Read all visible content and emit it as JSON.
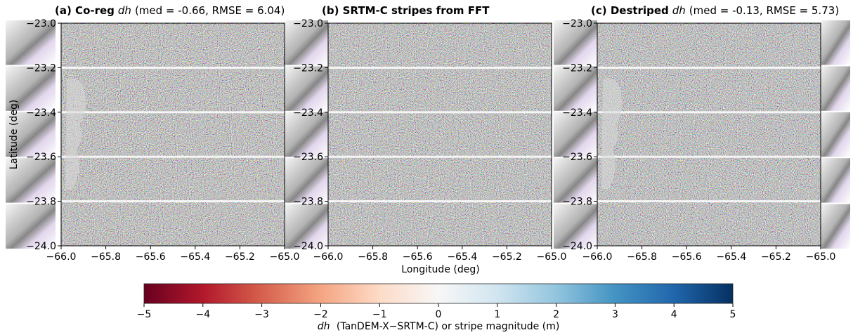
{
  "chart_data": {
    "type": "heatmap",
    "panels": [
      {
        "id": "a",
        "title_tag": "(a)",
        "title_bold": "Co-reg",
        "title_var": "dh",
        "title_stats": "(med = -0.66, RMSE = 6.04)",
        "median": -0.66,
        "rmse": 6.04
      },
      {
        "id": "b",
        "title_tag": "(b)",
        "title_bold": "SRTM-C stripes from FFT",
        "title_var": "",
        "title_stats": ""
      },
      {
        "id": "c",
        "title_tag": "(c)",
        "title_bold": "Destriped",
        "title_var": "dh",
        "title_stats": "(med = -0.13, RMSE = 5.73)",
        "median": -0.13,
        "rmse": 5.73
      }
    ],
    "xlim": [
      -66.0,
      -65.0
    ],
    "ylim": [
      -24.0,
      -23.0
    ],
    "x_ticks": [
      "−66.0",
      "−65.8",
      "−65.6",
      "−65.4",
      "−65.2",
      "−65.0"
    ],
    "y_ticks": [
      "−23.0",
      "−23.2",
      "−23.4",
      "−23.6",
      "−23.8",
      "−24.0"
    ],
    "xlabel": "Longitude (deg)",
    "ylabel": "Latitude (deg)",
    "stripe_latitudes": [
      -23.2,
      -23.4,
      -23.6,
      -23.8
    ],
    "colorbar": {
      "cmap": "RdBu",
      "vmin": -5,
      "vmax": 5,
      "ticks": [
        "−5",
        "−4",
        "−3",
        "−2",
        "−1",
        "0",
        "1",
        "2",
        "3",
        "4",
        "5"
      ],
      "label_var": "dh",
      "label_rest": "(TanDEM-X−SRTM-C) or stripe magnitude (m)",
      "colors": [
        "#67001f",
        "#b2182b",
        "#d6604d",
        "#f4a582",
        "#fddbc7",
        "#f7f7f7",
        "#d1e5f0",
        "#92c5de",
        "#4393c3",
        "#2166ac",
        "#053061"
      ]
    }
  }
}
